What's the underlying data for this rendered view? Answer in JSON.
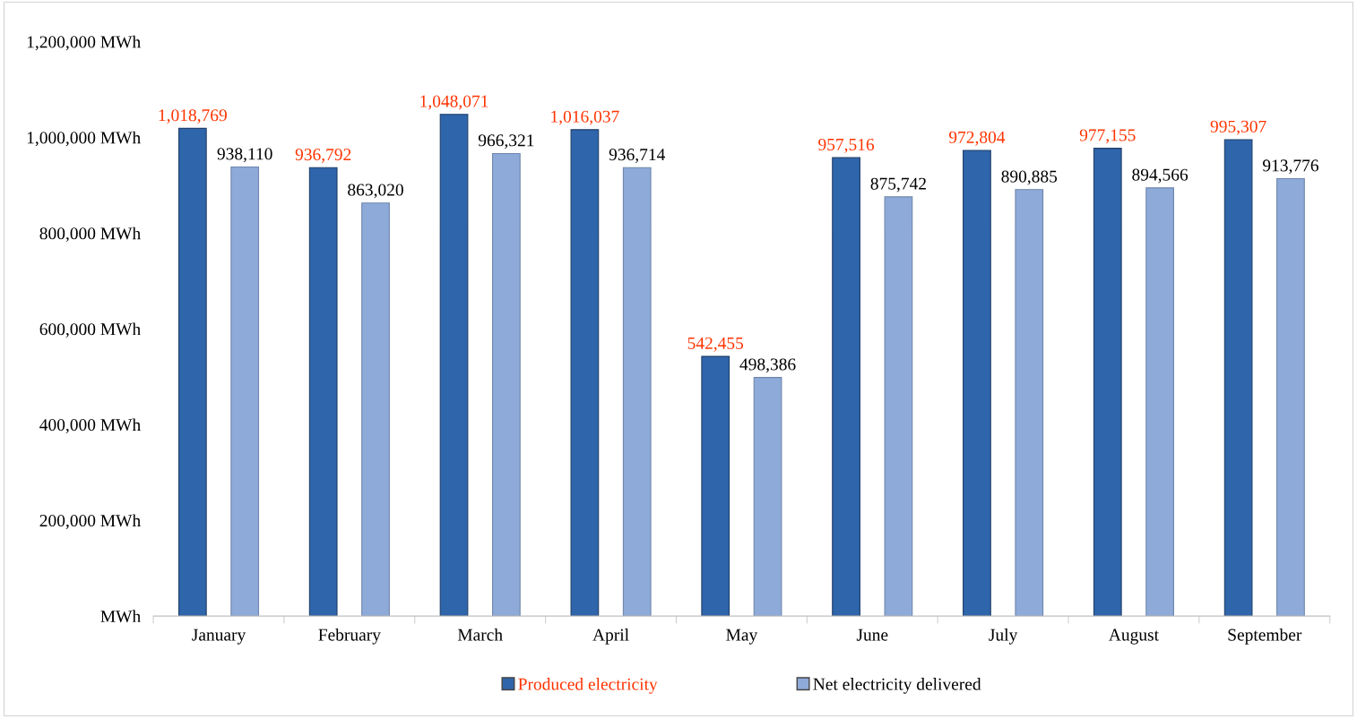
{
  "chart_data": {
    "type": "bar",
    "categories": [
      "January",
      "February",
      "March",
      "April",
      "May",
      "June",
      "July",
      "August",
      "September"
    ],
    "series": [
      {
        "name": "Produced electricity",
        "color": "#2f65aa",
        "values": [
          1018769,
          936792,
          1048071,
          1016037,
          542455,
          957516,
          972804,
          977155,
          995307
        ],
        "value_labels": [
          "1,018,769",
          "936,792",
          "1,048,071",
          "1,016,037",
          "542,455",
          "957,516",
          "972,804",
          "977,155",
          "995,307"
        ]
      },
      {
        "name": "Net electricity delivered",
        "color": "#8eaad8",
        "values": [
          938110,
          863020,
          966321,
          936714,
          498386,
          875742,
          890885,
          894566,
          913776
        ],
        "value_labels": [
          "938,110",
          "863,020",
          "966,321",
          "936,714",
          "498,386",
          "875,742",
          "890,885",
          "894,566",
          "913,776"
        ]
      }
    ],
    "ylim": [
      0,
      1200000
    ],
    "yticks": [
      {
        "value": 0,
        "label": "MWh"
      },
      {
        "value": 200000,
        "label": "200,000 MWh"
      },
      {
        "value": 400000,
        "label": "400,000 MWh"
      },
      {
        "value": 600000,
        "label": "600,000 MWh"
      },
      {
        "value": 800000,
        "label": "800,000 MWh"
      },
      {
        "value": 1000000,
        "label": "1,000,000 MWh"
      },
      {
        "value": 1200000,
        "label": "1,200,000 MWh"
      }
    ],
    "grid": false,
    "legend": "bottom"
  }
}
